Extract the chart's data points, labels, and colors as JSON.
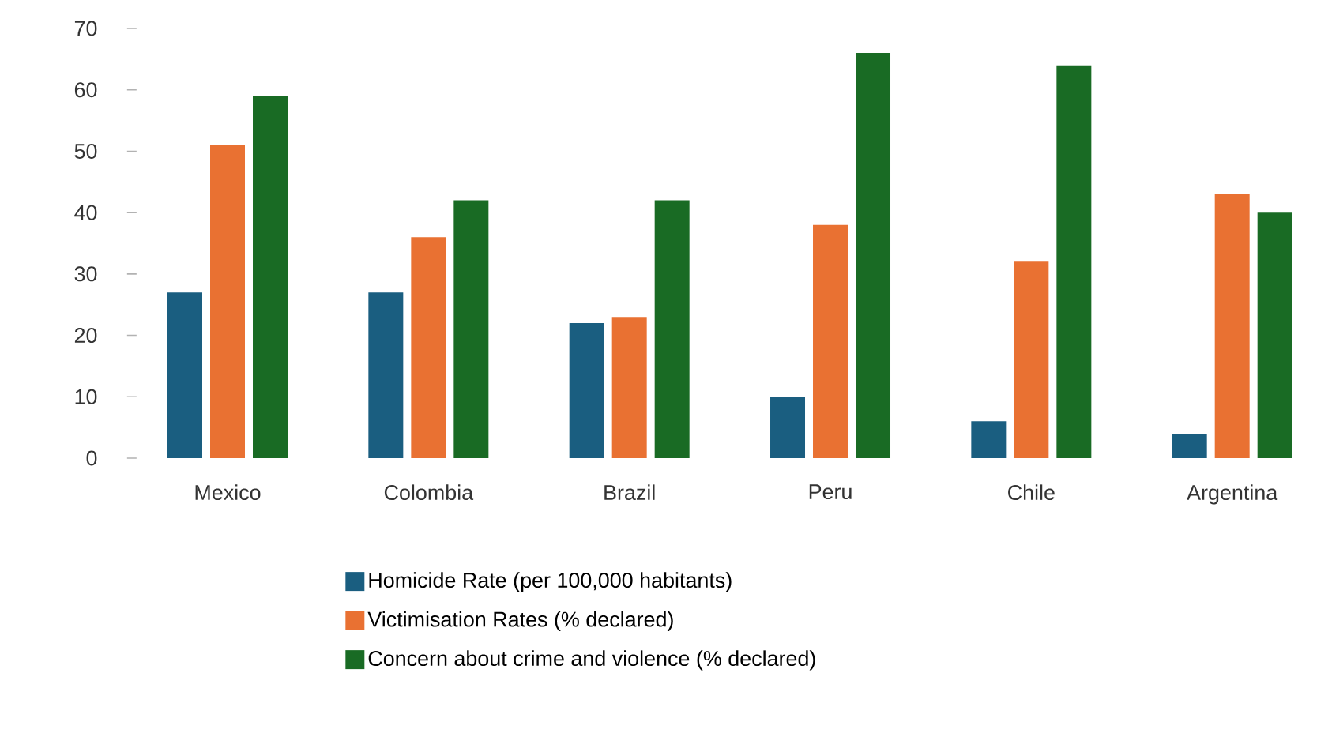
{
  "chart_data": {
    "type": "bar",
    "categories": [
      "Mexico",
      "Colombia",
      "Brazil",
      "Peru",
      "Chile",
      "Argentina"
    ],
    "series": [
      {
        "name": "Homicide Rate (per 100,000 habitants)",
        "color": "#1a5e80",
        "values": [
          27,
          27,
          22,
          10,
          6,
          4
        ]
      },
      {
        "name": "Victimisation Rates (% declared)",
        "color": "#e97132",
        "values": [
          51,
          36,
          23,
          38,
          32,
          43
        ]
      },
      {
        "name": "Concern about crime and violence (% declared)",
        "color": "#196b24",
        "values": [
          59,
          42,
          42,
          66,
          64,
          40
        ]
      }
    ],
    "ylim": [
      0,
      70
    ],
    "yticks": [
      0,
      10,
      20,
      30,
      40,
      50,
      60,
      70
    ],
    "grid": false,
    "legend": "bottom"
  }
}
